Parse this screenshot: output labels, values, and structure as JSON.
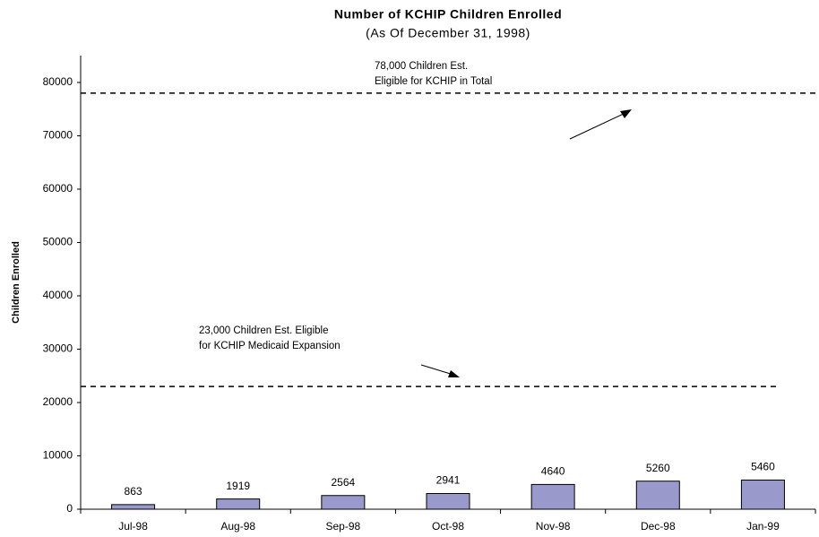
{
  "chart_data": {
    "type": "bar",
    "title": "Number of KCHIP Children Enrolled",
    "subtitle": "(As Of December 31, 1998)",
    "y_label": "Children Enrolled",
    "categories": [
      "Jul-98",
      "Aug-98",
      "Sep-98",
      "Oct-98",
      "Nov-98",
      "Dec-98",
      "Jan-99"
    ],
    "values": [
      863,
      1919,
      2564,
      2941,
      4640,
      5260,
      5460
    ],
    "color": "#9999cc",
    "ylim": [
      0,
      85000
    ],
    "yticks": [
      0,
      10000,
      20000,
      30000,
      40000,
      50000,
      60000,
      70000,
      80000
    ],
    "reference_lines": [
      {
        "value": 78000,
        "annotation": [
          "78,000 Children Est.",
          "Eligible for KCHIP in Total"
        ]
      },
      {
        "value": 23000,
        "annotation": [
          "23,000 Children Est. Eligible",
          "for KCHIP Medicaid Expansion"
        ]
      }
    ]
  }
}
